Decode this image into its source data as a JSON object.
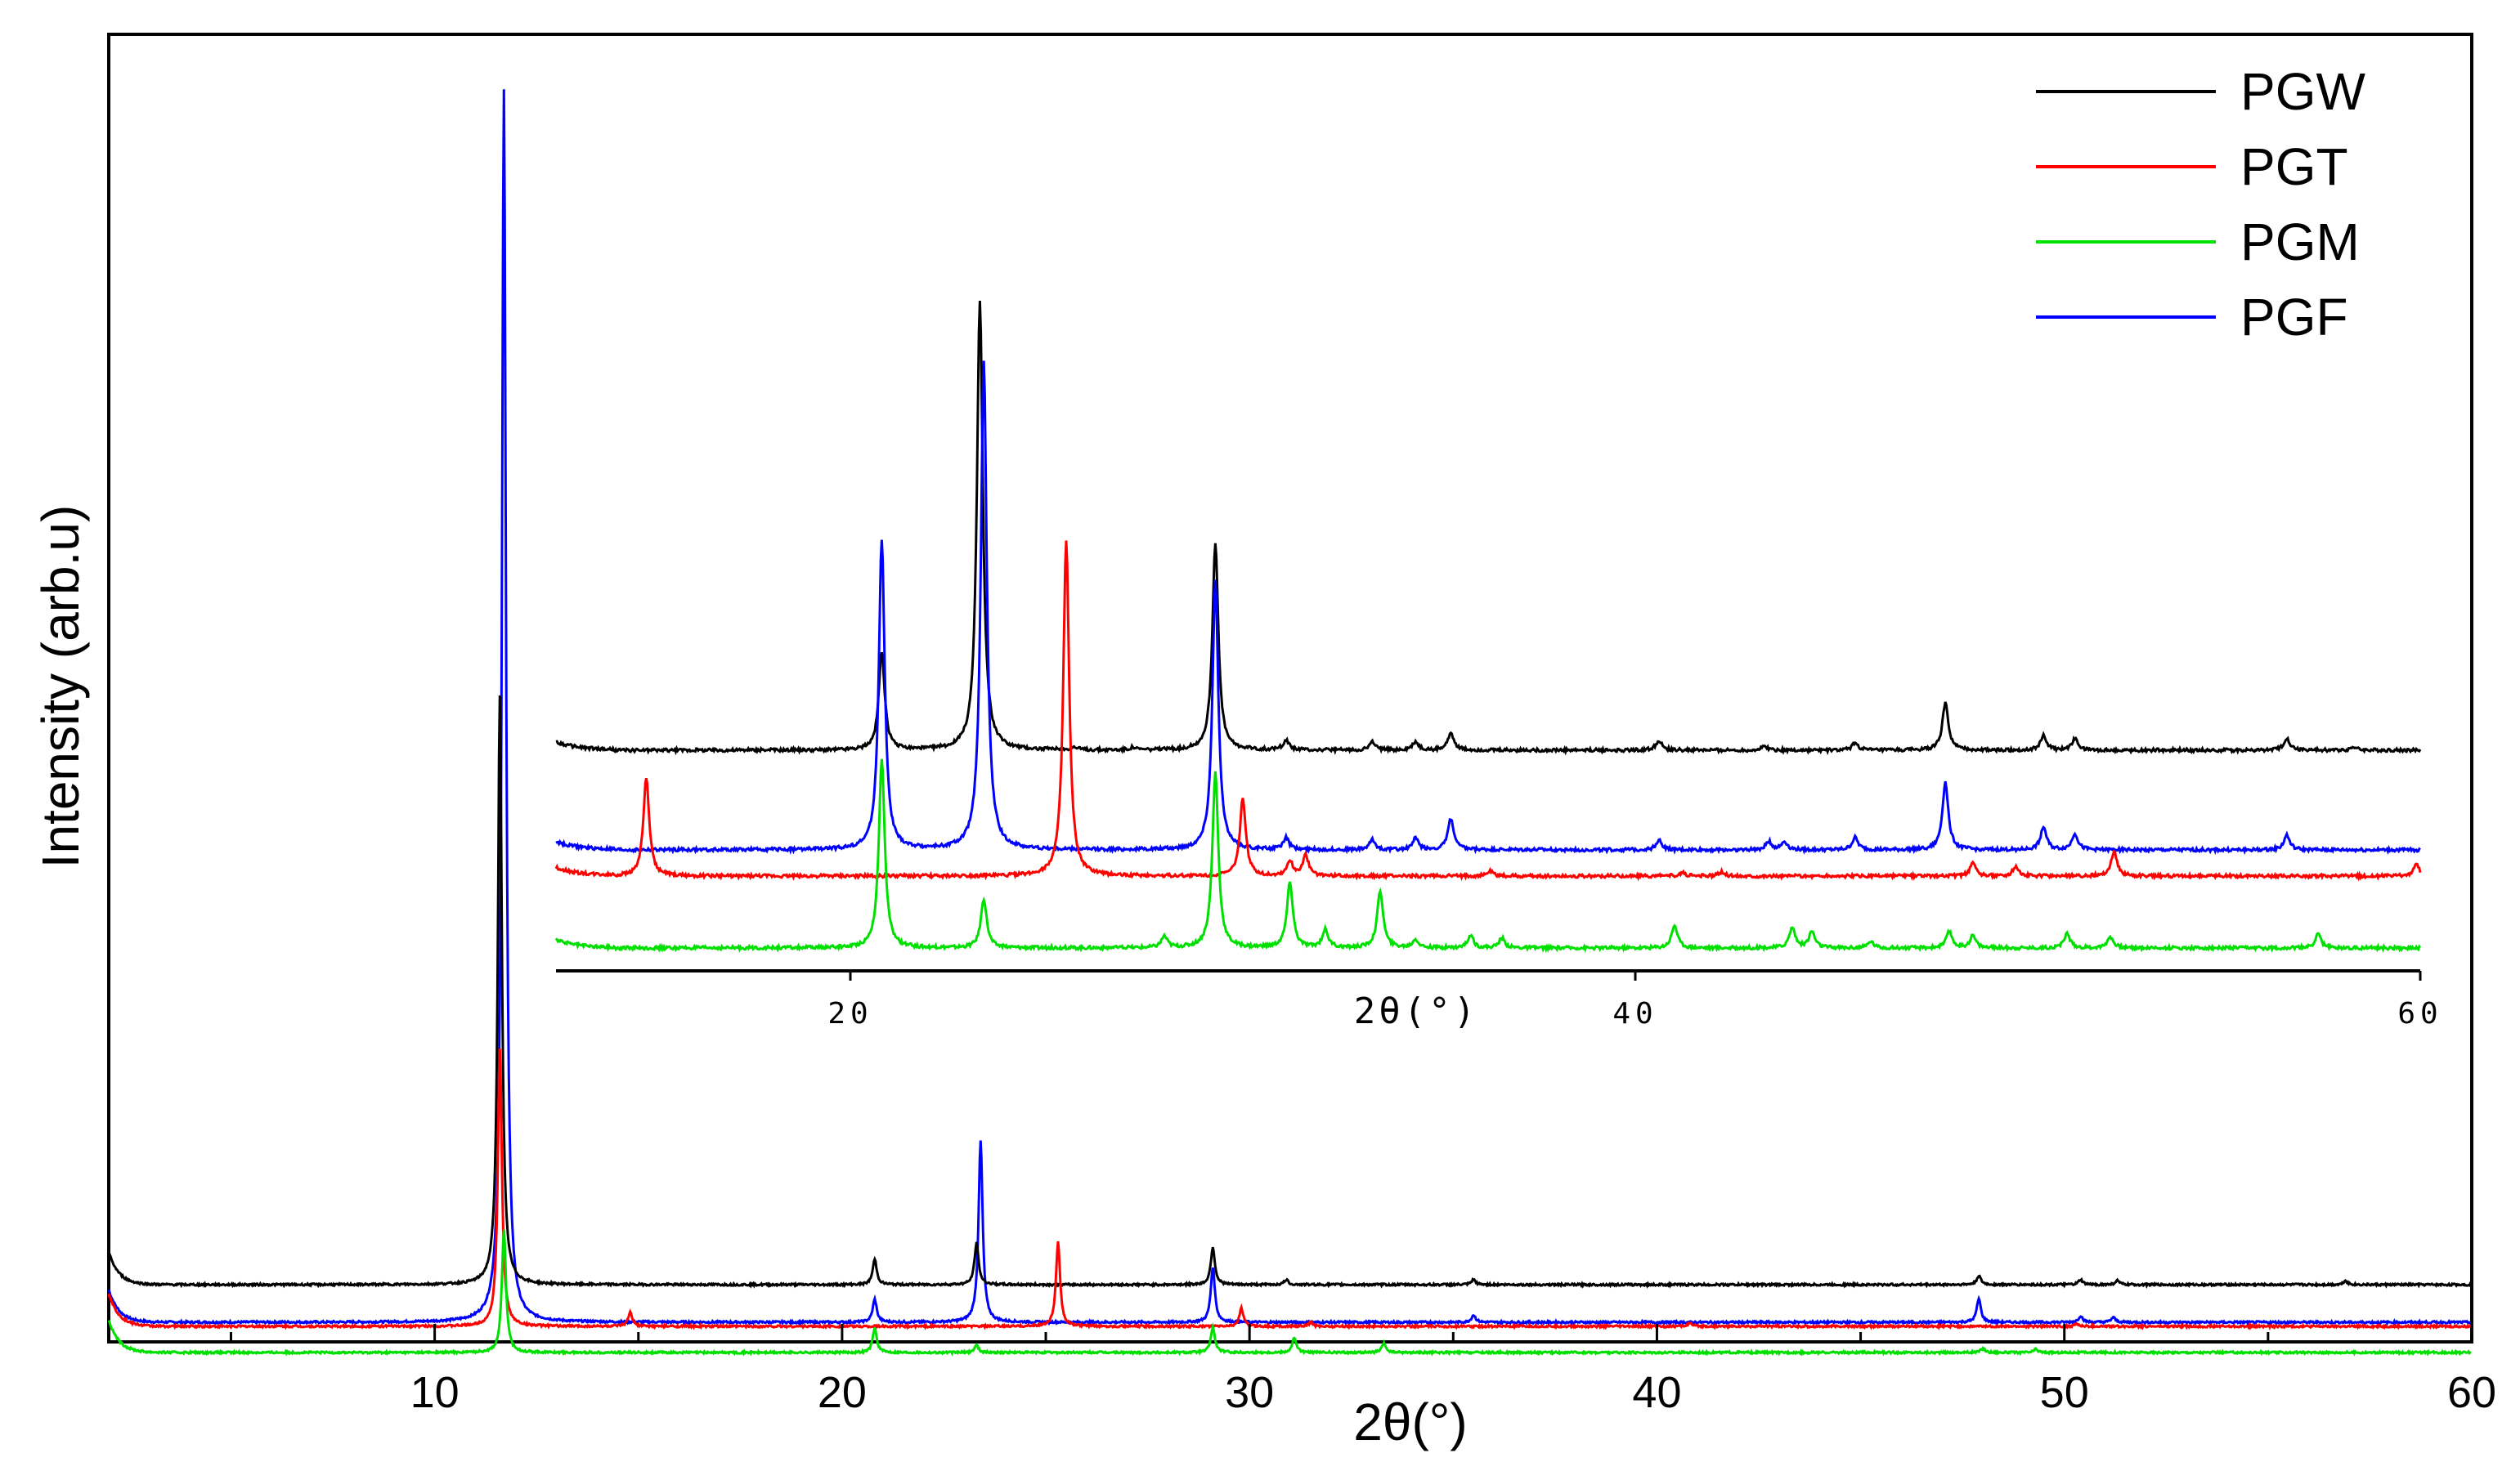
{
  "chart_data": [
    {
      "type": "line",
      "panel": "main",
      "xlabel": "2θ(°)",
      "ylabel": "Intensity (arb.u)",
      "xlim": [
        2,
        60
      ],
      "xticks": [
        10,
        20,
        30,
        40,
        50,
        60
      ],
      "xtick_labels": [
        "10",
        "20",
        "30",
        "40",
        "50",
        "60"
      ],
      "y_tick_labels": false,
      "legend": {
        "placement": "top-right"
      },
      "series": [
        {
          "name": "PGW",
          "color": "#000000",
          "baseline": 96,
          "peaks": [
            [
              11.6,
              720
            ],
            [
              20.8,
              31
            ],
            [
              23.3,
              51
            ],
            [
              29.1,
              46
            ],
            [
              30.9,
              6
            ],
            [
              35.5,
              6
            ],
            [
              47.9,
              11
            ],
            [
              50.4,
              6
            ],
            [
              51.3,
              5
            ],
            [
              56.9,
              5
            ]
          ]
        },
        {
          "name": "PGT",
          "color": "#ff0000",
          "baseline": 45,
          "peaks": [
            [
              11.6,
              340
            ],
            [
              14.8,
              17
            ],
            [
              25.3,
              103
            ],
            [
              29.8,
              22
            ],
            [
              31.5,
              5
            ],
            [
              40.8,
              4
            ],
            [
              50.3,
              3
            ]
          ]
        },
        {
          "name": "PGM",
          "color": "#00e000",
          "baseline": 13,
          "peaks": [
            [
              11.7,
              150
            ],
            [
              20.8,
              30
            ],
            [
              23.3,
              9
            ],
            [
              29.1,
              31
            ],
            [
              31.1,
              18
            ],
            [
              33.3,
              11
            ],
            [
              48.0,
              5
            ],
            [
              49.3,
              4
            ]
          ]
        },
        {
          "name": "PGF",
          "color": "#0000ff",
          "baseline": 50,
          "peaks": [
            [
              11.7,
              1510
            ],
            [
              20.8,
              28
            ],
            [
              23.4,
              222
            ],
            [
              29.1,
              68
            ],
            [
              35.5,
              9
            ],
            [
              47.9,
              29
            ],
            [
              50.4,
              8
            ],
            [
              51.2,
              6
            ]
          ]
        }
      ]
    },
    {
      "type": "line",
      "panel": "inset",
      "xlabel": "2θ(°)",
      "xlim": [
        12.5,
        60
      ],
      "xticks": [
        20,
        40,
        60
      ],
      "xtick_labels": [
        "20",
        "40",
        "60"
      ],
      "series": [
        {
          "name": "PGW",
          "color": "#000000",
          "baseline": 128,
          "peaks": [
            [
              20.8,
              120
            ],
            [
              23.3,
              550
            ],
            [
              25.7,
              3
            ],
            [
              27.2,
              3
            ],
            [
              29.3,
              255
            ],
            [
              31.1,
              12
            ],
            [
              33.3,
              10
            ],
            [
              34.4,
              10
            ],
            [
              35.3,
              22
            ],
            [
              40.6,
              12
            ],
            [
              43.3,
              5
            ],
            [
              45.6,
              9
            ],
            [
              47.9,
              58
            ],
            [
              50.4,
              18
            ],
            [
              51.2,
              14
            ],
            [
              56.6,
              15
            ],
            [
              58.3,
              4
            ]
          ]
        },
        {
          "name": "PGF",
          "color": "#0000ff",
          "baseline": 80,
          "peaks": [
            [
              20.8,
              380
            ],
            [
              23.4,
              600
            ],
            [
              29.3,
              330
            ],
            [
              31.1,
              14
            ],
            [
              33.3,
              12
            ],
            [
              34.4,
              14
            ],
            [
              35.3,
              38
            ],
            [
              40.6,
              12
            ],
            [
              43.4,
              10
            ],
            [
              43.8,
              10
            ],
            [
              45.6,
              15
            ],
            [
              47.9,
              83
            ],
            [
              50.4,
              28
            ],
            [
              51.2,
              20
            ],
            [
              56.6,
              18
            ]
          ]
        },
        {
          "name": "PGT",
          "color": "#ff0000",
          "baseline": 60,
          "peaks": [
            [
              14.8,
              120
            ],
            [
              25.5,
              410
            ],
            [
              30.0,
              95
            ],
            [
              31.2,
              18
            ],
            [
              31.6,
              25
            ],
            [
              36.3,
              6
            ],
            [
              41.2,
              4
            ],
            [
              42.2,
              5
            ],
            [
              48.6,
              15
            ],
            [
              49.7,
              12
            ],
            [
              52.2,
              30
            ],
            [
              59.9,
              14
            ]
          ]
        },
        {
          "name": "PGM",
          "color": "#00e000",
          "baseline": 12,
          "peaks": [
            [
              20.8,
              230
            ],
            [
              23.4,
              60
            ],
            [
              28.0,
              14
            ],
            [
              29.3,
              215
            ],
            [
              31.2,
              80
            ],
            [
              32.1,
              22
            ],
            [
              33.5,
              70
            ],
            [
              34.4,
              10
            ],
            [
              35.8,
              15
            ],
            [
              36.6,
              12
            ],
            [
              41.0,
              28
            ],
            [
              44.0,
              25
            ],
            [
              44.5,
              20
            ],
            [
              46.0,
              8
            ],
            [
              48.0,
              20
            ],
            [
              48.6,
              15
            ],
            [
              51.0,
              18
            ],
            [
              52.1,
              14
            ],
            [
              57.4,
              17
            ]
          ]
        }
      ]
    }
  ]
}
